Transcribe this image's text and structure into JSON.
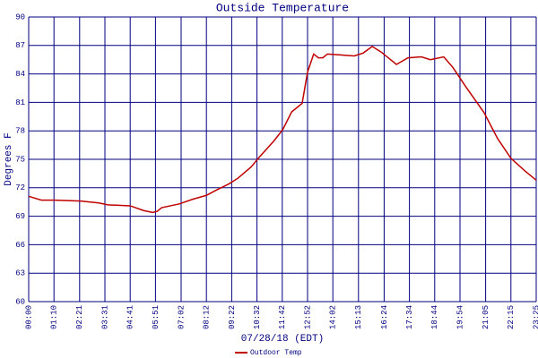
{
  "chart_data": {
    "type": "line",
    "title": "Outside Temperature",
    "y_label": "Degrees F",
    "x_label": "07/28/18 (EDT)",
    "x": [
      0,
      35,
      70,
      144,
      194,
      219,
      281,
      318,
      343,
      355,
      368,
      417,
      455,
      492,
      517,
      554,
      579,
      616,
      640,
      678,
      703,
      728,
      757,
      772,
      789,
      802,
      814,
      827,
      864,
      901,
      926,
      951,
      976,
      1018,
      1050,
      1087,
      1112,
      1149,
      1174,
      1211,
      1261,
      1298,
      1335,
      1373,
      1405
    ],
    "series": [
      {
        "name": "Outdoor Temp",
        "color": "#c00000",
        "values": [
          71.1,
          70.7,
          70.7,
          70.6,
          70.4,
          70.2,
          70.1,
          69.6,
          69.4,
          69.5,
          69.9,
          70.3,
          70.8,
          71.2,
          71.7,
          72.4,
          73.0,
          74.2,
          75.3,
          76.9,
          78.1,
          80.0,
          80.9,
          84.2,
          86.1,
          85.7,
          85.7,
          86.1,
          86.0,
          85.9,
          86.2,
          86.9,
          86.3,
          85.0,
          85.7,
          85.8,
          85.5,
          85.8,
          84.7,
          82.6,
          79.9,
          77.2,
          75.1,
          73.8,
          72.8
        ]
      }
    ],
    "xlim": [
      0,
      1405
    ],
    "xticks": [
      {
        "value": 0,
        "label": "00:00"
      },
      {
        "value": 70,
        "label": "01:10"
      },
      {
        "value": 141,
        "label": "02:21"
      },
      {
        "value": 211,
        "label": "03:31"
      },
      {
        "value": 281,
        "label": "04:41"
      },
      {
        "value": 351,
        "label": "05:51"
      },
      {
        "value": 422,
        "label": "07:02"
      },
      {
        "value": 492,
        "label": "08:12"
      },
      {
        "value": 562,
        "label": "09:22"
      },
      {
        "value": 632,
        "label": "10:32"
      },
      {
        "value": 702,
        "label": "11:42"
      },
      {
        "value": 772,
        "label": "12:52"
      },
      {
        "value": 842,
        "label": "14:02"
      },
      {
        "value": 913,
        "label": "15:13"
      },
      {
        "value": 984,
        "label": "16:24"
      },
      {
        "value": 1054,
        "label": "17:34"
      },
      {
        "value": 1124,
        "label": "18:44"
      },
      {
        "value": 1194,
        "label": "19:54"
      },
      {
        "value": 1265,
        "label": "21:05"
      },
      {
        "value": 1335,
        "label": "22:15"
      },
      {
        "value": 1405,
        "label": "23:25"
      }
    ],
    "ylim": [
      60,
      90
    ],
    "yticks": [
      60,
      63,
      66,
      69,
      72,
      75,
      78,
      81,
      84,
      87,
      90
    ],
    "grid": true,
    "grid_color": "#000080"
  }
}
